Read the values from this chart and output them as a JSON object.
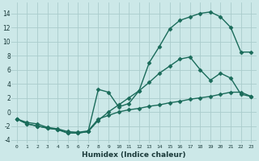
{
  "bg_color": "#cce8e8",
  "grid_color": "#aacccc",
  "line_color": "#1a6b5a",
  "marker_style": "D",
  "marker_size": 2.5,
  "linewidth": 1.0,
  "line1_x": [
    0,
    1,
    2,
    3,
    4,
    5,
    6,
    7,
    8,
    9,
    10,
    11,
    12,
    13,
    14,
    15,
    16,
    17,
    18,
    19,
    20,
    21,
    22,
    23
  ],
  "line1_y": [
    -1.0,
    -1.7,
    -2.0,
    -2.3,
    -2.5,
    -3.0,
    -3.0,
    -2.8,
    -1.2,
    0.0,
    1.0,
    2.0,
    3.0,
    4.2,
    5.5,
    6.5,
    7.5,
    7.8,
    6.0,
    4.5,
    5.5,
    4.8,
    2.5,
    2.2
  ],
  "line2_x": [
    0,
    1,
    2,
    3,
    4,
    5,
    6,
    7,
    8,
    9,
    10,
    11,
    12,
    13,
    14,
    15,
    16,
    17,
    18,
    19,
    20,
    21,
    22,
    23
  ],
  "line2_y": [
    -1.0,
    -1.7,
    -2.0,
    -2.3,
    -2.5,
    -3.0,
    -3.0,
    -2.8,
    3.2,
    2.8,
    0.7,
    1.2,
    3.0,
    7.0,
    9.3,
    11.8,
    13.0,
    13.5,
    14.0,
    14.2,
    13.5,
    12.0,
    8.5,
    8.5
  ],
  "line3_x": [
    0,
    1,
    2,
    3,
    4,
    5,
    6,
    7,
    8,
    9,
    10,
    11,
    12,
    13,
    14,
    15,
    16,
    17,
    18,
    19,
    20,
    21,
    22,
    23
  ],
  "line3_y": [
    -1.0,
    -1.5,
    -1.7,
    -2.2,
    -2.4,
    -2.8,
    -2.9,
    -2.7,
    -1.0,
    -0.5,
    0.0,
    0.3,
    0.5,
    0.8,
    1.0,
    1.3,
    1.5,
    1.8,
    2.0,
    2.2,
    2.5,
    2.8,
    2.8,
    2.2
  ],
  "xlabel": "Humidex (Indice chaleur)",
  "xlim": [
    -0.5,
    23.5
  ],
  "ylim": [
    -4.5,
    15.5
  ],
  "yticks": [
    -4,
    -2,
    0,
    2,
    4,
    6,
    8,
    10,
    12,
    14
  ],
  "xticks": [
    0,
    1,
    2,
    3,
    4,
    5,
    6,
    7,
    8,
    9,
    10,
    11,
    12,
    13,
    14,
    15,
    16,
    17,
    18,
    19,
    20,
    21,
    22,
    23
  ]
}
